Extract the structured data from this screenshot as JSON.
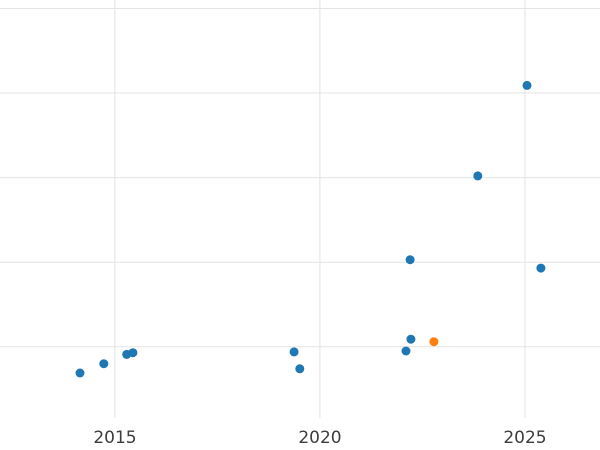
{
  "chart_data": {
    "type": "scatter",
    "title": "",
    "xlabel": "",
    "ylabel": "",
    "xlim": [
      2012.2,
      2026.83
    ],
    "ylim": [
      -0.22,
      5.1
    ],
    "x_ticks": [
      "2015",
      "2020",
      "2025"
    ],
    "x_tick_values": [
      2015,
      2020,
      2025
    ],
    "x_gridlines": [
      2015,
      2020,
      2025
    ],
    "y_gridlines": [
      1,
      2,
      3,
      4,
      5
    ],
    "grid_on": true,
    "legend_position": "none",
    "colors": {
      "background": "#ffffff",
      "grid": "#e4e4e4",
      "tick_text": "#3d3d3d",
      "series_blue": "#1f77b4",
      "series_orange": "#ff7f0e"
    },
    "point_radius": 4.5,
    "series": [
      {
        "name": "blue-series",
        "color": "#1f77b4",
        "points": [
          [
            2014.15,
            0.69
          ],
          [
            2014.73,
            0.8
          ],
          [
            2015.29,
            0.91
          ],
          [
            2015.44,
            0.93
          ],
          [
            2019.37,
            0.94
          ],
          [
            2019.51,
            0.74
          ],
          [
            2022.1,
            0.95
          ],
          [
            2022.22,
            1.09
          ],
          [
            2022.2,
            2.03
          ],
          [
            2023.85,
            3.02
          ],
          [
            2025.05,
            4.09
          ],
          [
            2025.39,
            1.93
          ]
        ]
      },
      {
        "name": "orange-series",
        "color": "#ff7f0e",
        "points": [
          [
            2022.78,
            1.06
          ]
        ]
      }
    ]
  }
}
